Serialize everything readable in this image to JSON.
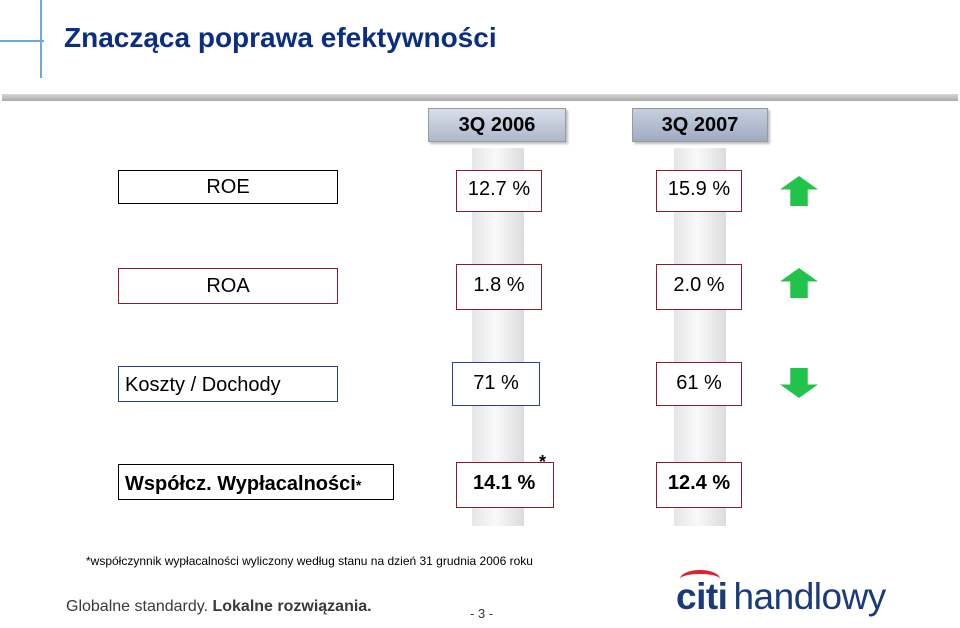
{
  "page": {
    "title": "Znacząca poprawa efektywności"
  },
  "columns": {
    "left_header": "3Q 2006",
    "right_header": "3Q 2007"
  },
  "rows": [
    {
      "label": "ROE",
      "value_2006": "12.7 %",
      "value_2007": "15.9 %",
      "trend": "up",
      "trend_icon": "arrow-up-icon"
    },
    {
      "label": "ROA",
      "value_2006": "1.8 %",
      "value_2007": "2.0 %",
      "trend": "up",
      "trend_icon": "arrow-up-icon"
    },
    {
      "label": "Koszty / Dochody",
      "value_2006": "71 %",
      "value_2007": "61 %",
      "trend": "down",
      "trend_icon": "arrow-down-icon"
    },
    {
      "label": "Współcz. Wypłacalności",
      "label_marker": "*",
      "value_2006": "14.1 %",
      "value_2006_marker": "*",
      "value_2007": "12.4 %"
    }
  ],
  "footnote": "*współczynnik wypłacalności wyliczony według stanu na dzień 31 grudnia 2006 roku",
  "footer": {
    "slogan_part1": "Globalne standardy.",
    "slogan_part2": "Lokalne rozwiązania.",
    "page_number": "- 3 -",
    "logo_word1": "citi",
    "logo_word2": "handlowy"
  },
  "colors": {
    "title": "#0b2f80",
    "arrow": "#22c34a",
    "label_border": "#000000",
    "value_border_red": "#8c1c2c",
    "value_border_blue": "#2a3e8c",
    "logo_arc": "#d9262b"
  }
}
